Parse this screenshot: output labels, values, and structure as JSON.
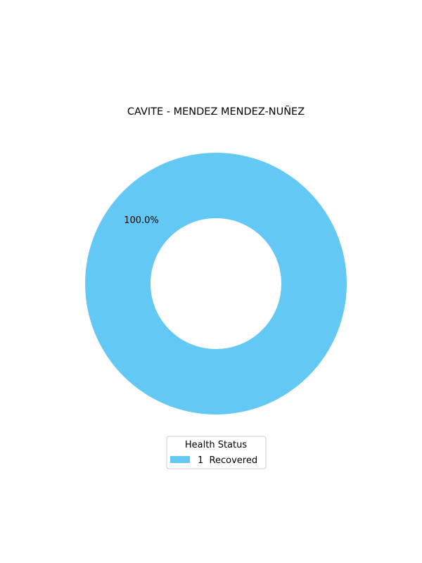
{
  "chart_data": {
    "type": "pie",
    "style": "donut",
    "title": "CAVITE - MENDEZ MENDEZ-NUÑEZ",
    "slices": [
      {
        "label": "Recovered",
        "value": 1,
        "percent_label": "100.0%",
        "legend_text": "1  Recovered",
        "color": "#64c8f4"
      }
    ],
    "legend": {
      "title": "Health Status",
      "placement": "bottom-center"
    }
  }
}
